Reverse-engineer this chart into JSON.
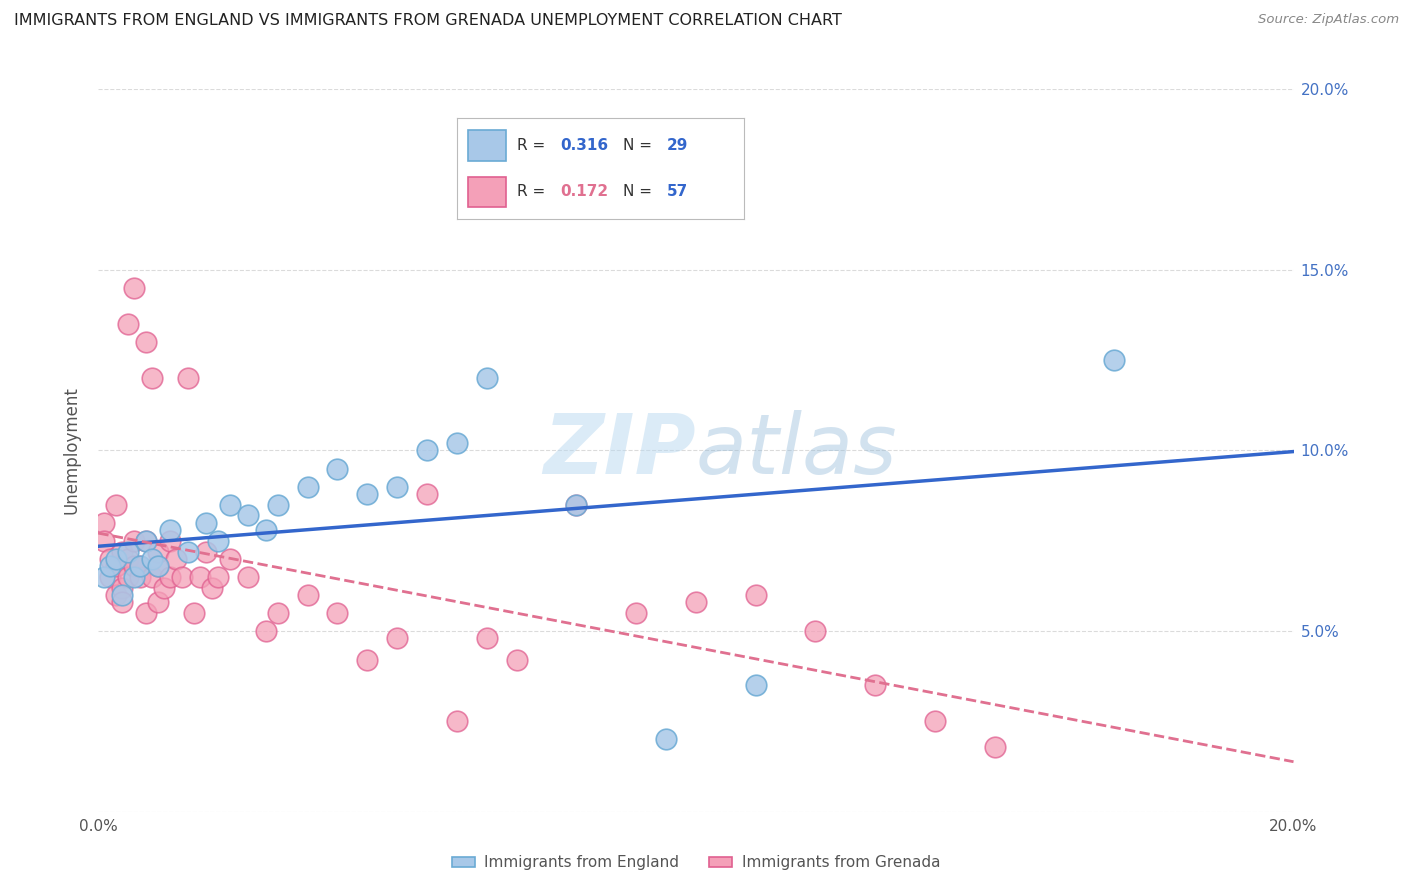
{
  "title": "IMMIGRANTS FROM ENGLAND VS IMMIGRANTS FROM GRENADA UNEMPLOYMENT CORRELATION CHART",
  "source": "Source: ZipAtlas.com",
  "ylabel": "Unemployment",
  "xlim": [
    0.0,
    0.2
  ],
  "ylim": [
    0.0,
    0.2
  ],
  "yticks": [
    0.0,
    0.05,
    0.1,
    0.15,
    0.2
  ],
  "ytick_labels_left": [
    "",
    "",
    "",
    "",
    ""
  ],
  "ytick_labels_right": [
    "",
    "5.0%",
    "10.0%",
    "15.0%",
    "20.0%"
  ],
  "xticks": [
    0.0,
    0.05,
    0.1,
    0.15,
    0.2
  ],
  "xtick_labels": [
    "0.0%",
    "",
    "",
    "",
    "20.0%"
  ],
  "legend_r1": "0.316",
  "legend_n1": "29",
  "legend_r2": "0.172",
  "legend_n2": "57",
  "england_color": "#a8c8e8",
  "england_edge": "#6aaad4",
  "grenada_color": "#f4a0b8",
  "grenada_edge": "#e06090",
  "england_line_color": "#3366cc",
  "grenada_line_color": "#e07090",
  "watermark_color": "#b8d8f0",
  "title_color": "#222222",
  "source_color": "#888888",
  "ylabel_color": "#555555",
  "tick_color": "#555555",
  "right_tick_color": "#4472c4",
  "grid_color": "#cccccc",
  "england_x": [
    0.001,
    0.002,
    0.003,
    0.004,
    0.005,
    0.006,
    0.007,
    0.008,
    0.009,
    0.01,
    0.012,
    0.015,
    0.018,
    0.02,
    0.022,
    0.025,
    0.028,
    0.03,
    0.035,
    0.04,
    0.045,
    0.05,
    0.055,
    0.06,
    0.065,
    0.08,
    0.095,
    0.11,
    0.17
  ],
  "england_y": [
    0.065,
    0.068,
    0.07,
    0.06,
    0.072,
    0.065,
    0.068,
    0.075,
    0.07,
    0.068,
    0.078,
    0.072,
    0.08,
    0.075,
    0.085,
    0.082,
    0.078,
    0.085,
    0.09,
    0.095,
    0.088,
    0.09,
    0.1,
    0.102,
    0.12,
    0.085,
    0.02,
    0.035,
    0.125
  ],
  "grenada_x": [
    0.001,
    0.001,
    0.002,
    0.002,
    0.003,
    0.003,
    0.003,
    0.004,
    0.004,
    0.004,
    0.005,
    0.005,
    0.005,
    0.006,
    0.006,
    0.006,
    0.007,
    0.007,
    0.008,
    0.008,
    0.008,
    0.009,
    0.009,
    0.01,
    0.01,
    0.01,
    0.011,
    0.012,
    0.012,
    0.013,
    0.014,
    0.015,
    0.016,
    0.017,
    0.018,
    0.019,
    0.02,
    0.022,
    0.025,
    0.028,
    0.03,
    0.035,
    0.04,
    0.045,
    0.05,
    0.055,
    0.06,
    0.065,
    0.07,
    0.08,
    0.09,
    0.1,
    0.11,
    0.12,
    0.13,
    0.14,
    0.15
  ],
  "grenada_y": [
    0.08,
    0.075,
    0.07,
    0.065,
    0.085,
    0.068,
    0.06,
    0.072,
    0.062,
    0.058,
    0.07,
    0.135,
    0.065,
    0.068,
    0.075,
    0.145,
    0.065,
    0.068,
    0.055,
    0.075,
    0.13,
    0.065,
    0.12,
    0.058,
    0.068,
    0.072,
    0.062,
    0.075,
    0.065,
    0.07,
    0.065,
    0.12,
    0.055,
    0.065,
    0.072,
    0.062,
    0.065,
    0.07,
    0.065,
    0.05,
    0.055,
    0.06,
    0.055,
    0.042,
    0.048,
    0.088,
    0.025,
    0.048,
    0.042,
    0.085,
    0.055,
    0.058,
    0.06,
    0.05,
    0.035,
    0.025,
    0.018
  ]
}
